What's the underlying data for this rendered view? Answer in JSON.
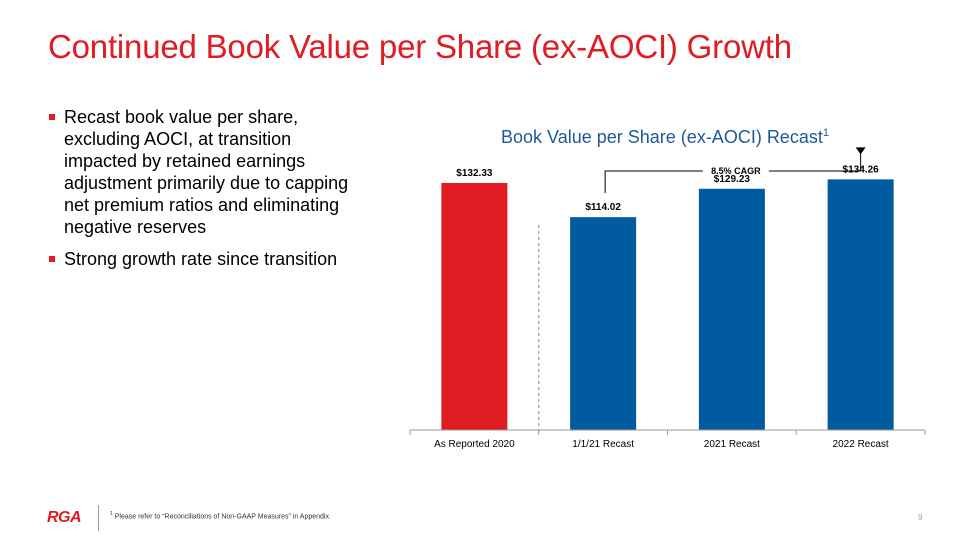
{
  "slide": {
    "title": "Continued Book Value per Share (ex-AOCI) Growth",
    "bullets": [
      "Recast book value per share, excluding AOCI, at transition impacted by retained earnings adjustment primarily due to capping net premium ratios and eliminating negative reserves",
      "Strong growth rate since transition"
    ],
    "footer": {
      "logo_text": "RGA",
      "footnote_marker": "1",
      "footnote": "Please refer to “Reconciliations of Non-GAAP Measures” in Appendix.",
      "page_number": "9"
    }
  },
  "colors": {
    "title_red": "#e11b22",
    "bar_red": "#e11b22",
    "bar_blue": "#005b9f",
    "chart_title_blue": "#1b5a96"
  },
  "chart_data": {
    "type": "bar",
    "title": "Book Value per Share (ex-AOCI) Recast",
    "title_superscript": "1",
    "categories": [
      "As Reported 2020",
      "1/1/21 Recast",
      "2021 Recast",
      "2022 Recast"
    ],
    "values": [
      132.33,
      114.02,
      129.23,
      134.26
    ],
    "value_labels": [
      "$132.33",
      "$114.02",
      "$129.23",
      "$134.26"
    ],
    "bar_colors": [
      "#e11b22",
      "#005b9f",
      "#005b9f",
      "#005b9f"
    ],
    "annotation": {
      "text": "8.5% CAGR",
      "from_category": "1/1/21 Recast",
      "to_category": "2022 Recast"
    },
    "divider_after_category": "As Reported 2020",
    "ylim": [
      0,
      150
    ],
    "grid": false,
    "legend": "none"
  }
}
